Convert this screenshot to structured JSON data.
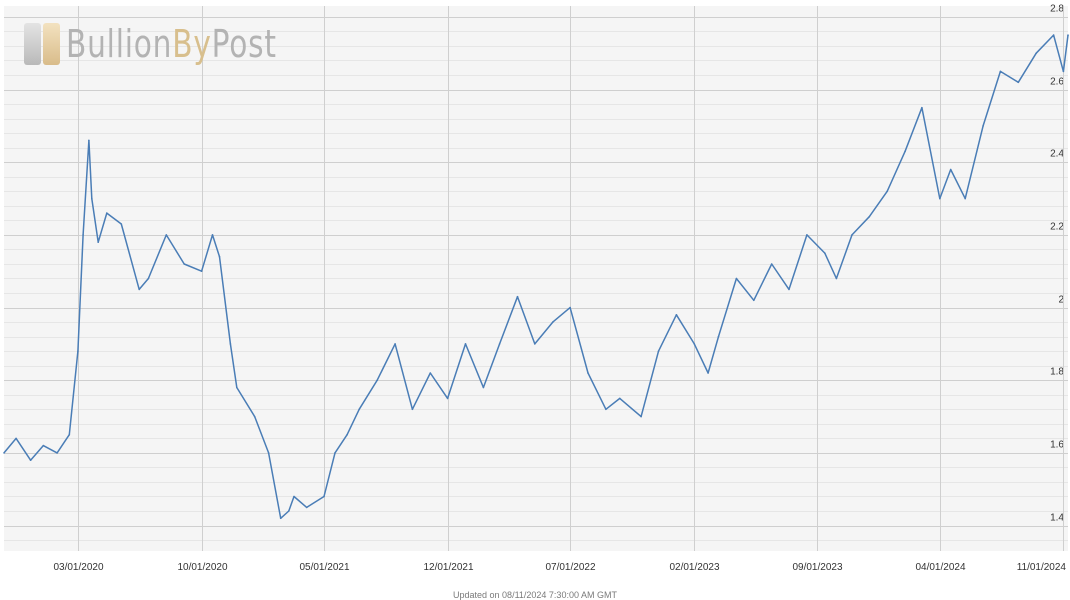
{
  "logo": {
    "part1": "Bullion",
    "part2": "By",
    "part3": "Post"
  },
  "footer": {
    "updated_text": "Updated on 08/11/2024 7:30:00 AM GMT"
  },
  "colors": {
    "line": "#4a7db6",
    "grid_major": "#cfcfcf",
    "grid_minor": "#e6e6e6",
    "plot_bg": "#f5f5f5",
    "tick_text": "#333333"
  },
  "chart_data": {
    "type": "line",
    "title": "",
    "xlabel": "",
    "ylabel": "",
    "x_ticks": [
      "03/01/2020",
      "10/01/2020",
      "05/01/2021",
      "12/01/2021",
      "07/01/2022",
      "02/01/2023",
      "09/01/2023",
      "04/01/2024",
      "11/01/2024"
    ],
    "y_ticks": [
      1.4,
      1.6,
      1.8,
      2,
      2.2,
      2.4,
      2.6,
      2.8
    ],
    "ylim": [
      1.33,
      2.83
    ],
    "xlim": [
      "2019-10-25",
      "2024-11-09"
    ],
    "y_axis_position": "right",
    "grid": true,
    "series": [
      {
        "x": [
          "2019-10-25",
          "2019-11-15",
          "2019-12-10",
          "2020-01-01",
          "2020-01-25",
          "2020-02-15",
          "2020-03-01",
          "2020-03-10",
          "2020-03-20",
          "2020-03-25",
          "2020-04-05",
          "2020-04-20",
          "2020-05-15",
          "2020-06-15",
          "2020-07-01",
          "2020-08-01",
          "2020-09-01",
          "2020-10-01",
          "2020-10-20",
          "2020-11-01",
          "2020-11-20",
          "2020-12-01",
          "2021-01-01",
          "2021-01-25",
          "2021-02-15",
          "2021-03-01",
          "2021-03-10",
          "2021-04-01",
          "2021-05-01",
          "2021-05-20",
          "2021-06-10",
          "2021-07-01",
          "2021-08-01",
          "2021-09-01",
          "2021-10-01",
          "2021-11-01",
          "2021-12-01",
          "2022-01-01",
          "2022-02-01",
          "2022-03-01",
          "2022-04-01",
          "2022-05-01",
          "2022-06-01",
          "2022-07-01",
          "2022-08-01",
          "2022-09-01",
          "2022-09-25",
          "2022-11-01",
          "2022-12-01",
          "2023-01-01",
          "2023-02-01",
          "2023-02-25",
          "2023-03-15",
          "2023-04-15",
          "2023-05-15",
          "2023-06-15",
          "2023-07-15",
          "2023-08-15",
          "2023-09-15",
          "2023-10-05",
          "2023-11-01",
          "2023-12-01",
          "2024-01-01",
          "2024-02-01",
          "2024-03-01",
          "2024-04-01",
          "2024-04-20",
          "2024-05-15",
          "2024-06-15",
          "2024-07-15",
          "2024-08-15",
          "2024-09-15",
          "2024-10-15",
          "2024-11-01",
          "2024-11-09"
        ],
        "y": [
          1.6,
          1.64,
          1.58,
          1.62,
          1.6,
          1.65,
          1.88,
          2.2,
          2.46,
          2.3,
          2.18,
          2.26,
          2.23,
          2.05,
          2.08,
          2.2,
          2.12,
          2.1,
          2.2,
          2.14,
          1.9,
          1.78,
          1.7,
          1.6,
          1.42,
          1.44,
          1.48,
          1.45,
          1.48,
          1.6,
          1.65,
          1.72,
          1.8,
          1.9,
          1.72,
          1.82,
          1.75,
          1.9,
          1.78,
          1.9,
          2.03,
          1.9,
          1.96,
          2.0,
          1.82,
          1.72,
          1.75,
          1.7,
          1.88,
          1.98,
          1.9,
          1.82,
          1.92,
          2.08,
          2.02,
          2.12,
          2.05,
          2.2,
          2.15,
          2.08,
          2.2,
          2.25,
          2.32,
          2.43,
          2.55,
          2.3,
          2.38,
          2.3,
          2.5,
          2.65,
          2.62,
          2.7,
          2.75,
          2.65,
          2.75
        ]
      }
    ]
  }
}
